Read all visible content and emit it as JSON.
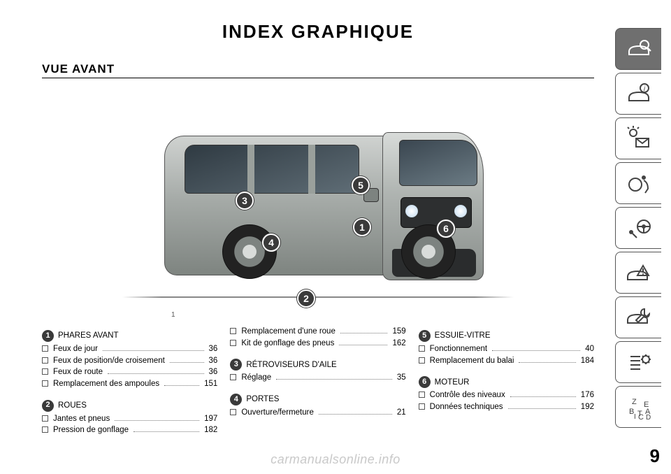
{
  "title": "INDEX GRAPHIQUE",
  "subtitle": "VUE AVANT",
  "figure_label": "1",
  "page_number": "9",
  "watermark": "carmanualsonline.info",
  "callouts": {
    "c1": "1",
    "c2": "2",
    "c3": "3",
    "c4": "4",
    "c5": "5",
    "c6": "6"
  },
  "columns": [
    {
      "sections": [
        {
          "num": "1",
          "title": "PHARES AVANT",
          "items": [
            {
              "label": "Feux de jour",
              "page": "36"
            },
            {
              "label": "Feux de position/de croisement",
              "page": "36"
            },
            {
              "label": "Feux de route",
              "page": "36"
            },
            {
              "label": "Remplacement des ampoules",
              "page": "151"
            }
          ]
        },
        {
          "num": "2",
          "title": "ROUES",
          "items": [
            {
              "label": "Jantes et pneus",
              "page": "197"
            },
            {
              "label": "Pression de gonflage",
              "page": "182"
            }
          ]
        }
      ]
    },
    {
      "sections": [
        {
          "num": null,
          "title": null,
          "items": [
            {
              "label": "Remplacement d'une roue",
              "page": "159"
            },
            {
              "label": "Kit de gonflage des pneus",
              "page": "162"
            }
          ]
        },
        {
          "num": "3",
          "title": "RÉTROVISEURS D'AILE",
          "items": [
            {
              "label": "Réglage",
              "page": "35"
            }
          ]
        },
        {
          "num": "4",
          "title": "PORTES",
          "items": [
            {
              "label": "Ouverture/fermeture",
              "page": "21"
            }
          ]
        }
      ]
    },
    {
      "sections": [
        {
          "num": "5",
          "title": "ESSUIE-VITRE",
          "items": [
            {
              "label": "Fonctionnement",
              "page": "40"
            },
            {
              "label": "Remplacement du balai",
              "page": "184"
            }
          ]
        },
        {
          "num": "6",
          "title": "MOTEUR",
          "items": [
            {
              "label": "Contrôle des niveaux",
              "page": "176"
            },
            {
              "label": "Données techniques",
              "page": "192"
            }
          ]
        }
      ]
    }
  ],
  "sidebar_active_index": 0,
  "colors": {
    "badge_bg": "#3a3a3a",
    "active_tile": "#6f6f6f",
    "text": "#000000",
    "watermark": "#c9c9c9"
  }
}
